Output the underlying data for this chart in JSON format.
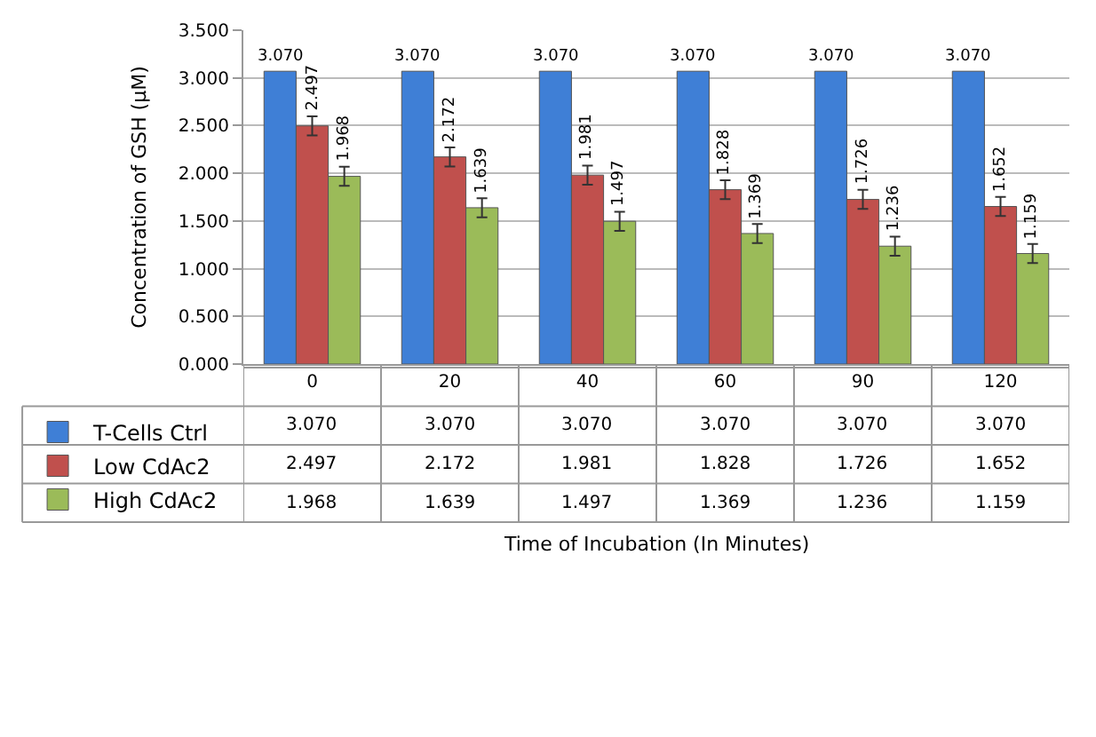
{
  "chart_data": {
    "type": "bar",
    "ylabel": "Concentration of GSH (μM)",
    "annotations": [
      "Time of Incubation (In Minutes)"
    ],
    "categories": [
      "0",
      "20",
      "40",
      "60",
      "90",
      "120"
    ],
    "series": [
      {
        "name": "T-Cells Ctrl",
        "color": "#3f7fd6",
        "values": [
          3.07,
          3.07,
          3.07,
          3.07,
          3.07,
          3.07
        ],
        "value_labels": [
          "3.070",
          "3.070",
          "3.070",
          "3.070",
          "3.070",
          "3.070"
        ]
      },
      {
        "name": "Low CdAc2",
        "color": "#c0504d",
        "values": [
          2.497,
          2.172,
          1.981,
          1.828,
          1.726,
          1.652
        ],
        "value_labels": [
          "2.497",
          "2.172",
          "1.981",
          "1.828",
          "1.726",
          "1.652"
        ],
        "errors": [
          0.1,
          0.1,
          0.1,
          0.1,
          0.1,
          0.1
        ]
      },
      {
        "name": "High CdAc2",
        "color": "#9bbb59",
        "values": [
          1.968,
          1.639,
          1.497,
          1.369,
          1.236,
          1.159
        ],
        "value_labels": [
          "1.968",
          "1.639",
          "1.497",
          "1.369",
          "1.236",
          "1.159"
        ],
        "errors": [
          0.1,
          0.1,
          0.1,
          0.1,
          0.1,
          0.1
        ]
      }
    ],
    "ylim": [
      0,
      3.5
    ],
    "yticks": [
      {
        "value": 0,
        "label": "0.000"
      },
      {
        "value": 0.5,
        "label": "0.500"
      },
      {
        "value": 1,
        "label": "1.000"
      },
      {
        "value": 1.5,
        "label": "1.500"
      },
      {
        "value": 2,
        "label": "2.000"
      },
      {
        "value": 2.5,
        "label": "2.500"
      },
      {
        "value": 3,
        "label": "3.000"
      },
      {
        "value": 3.5,
        "label": "3.500"
      }
    ],
    "grid": "y",
    "legend": "bottom left"
  }
}
